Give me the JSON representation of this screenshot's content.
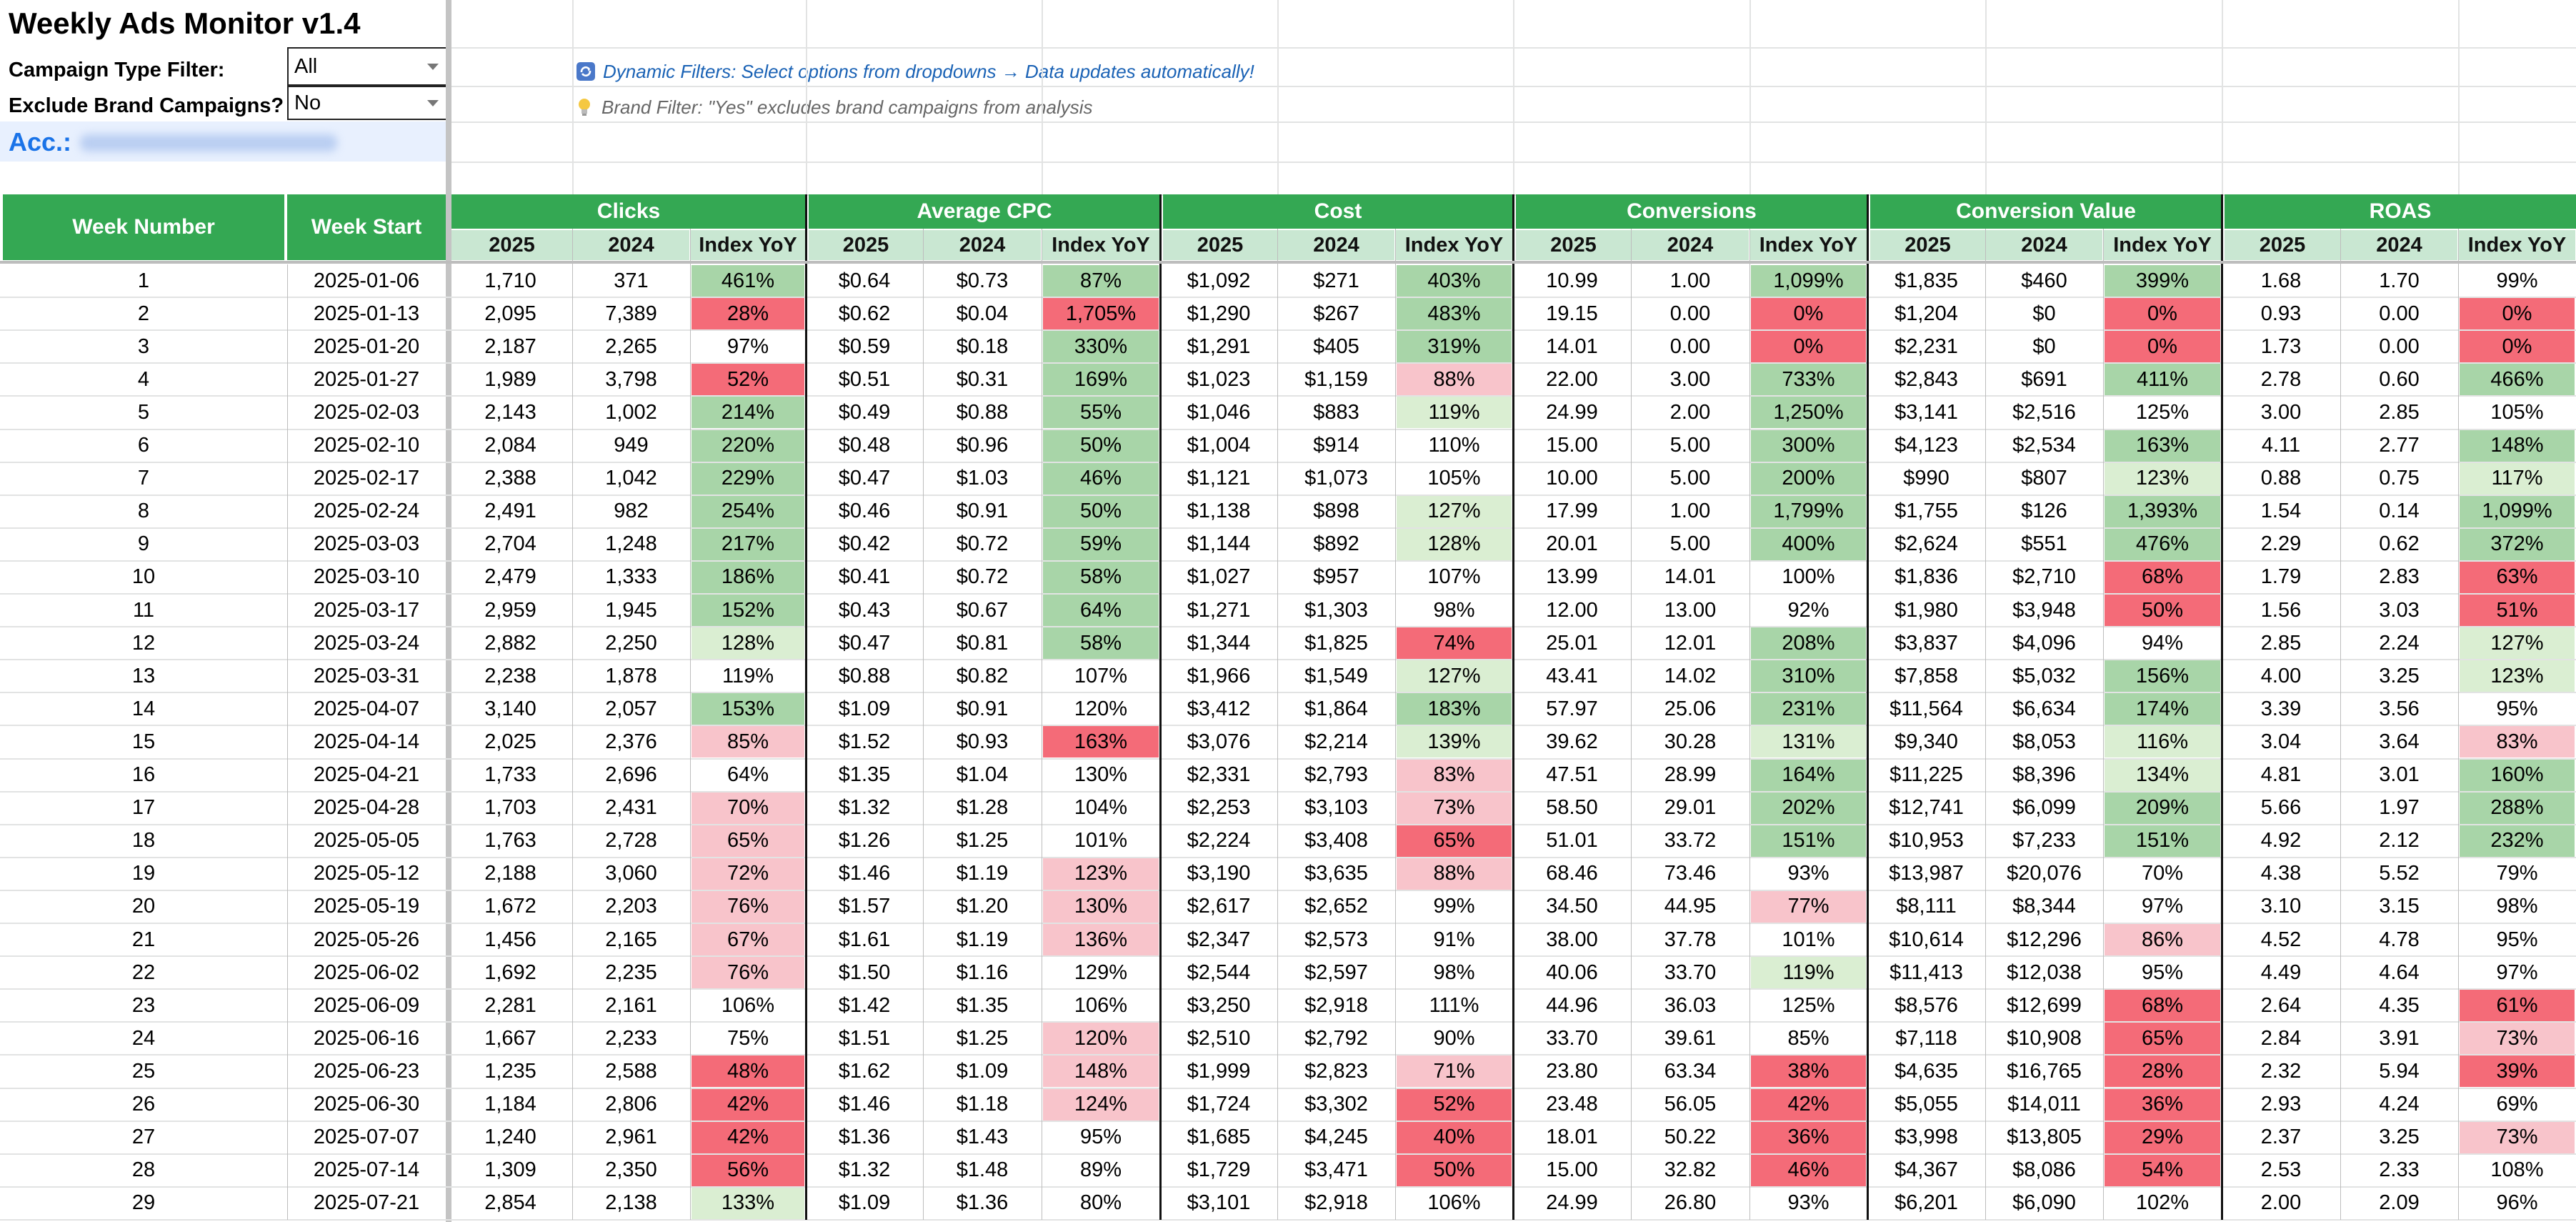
{
  "title": "Weekly Ads Monitor v1.4",
  "filters": {
    "campaign_type_label": "Campaign Type Filter:",
    "campaign_type_value": "All",
    "exclude_brand_label": "Exclude Brand Campaigns?",
    "exclude_brand_value": "No"
  },
  "notes": {
    "dynamic_filters": "Dynamic Filters: Select options from dropdowns → Data updates automatically!",
    "brand_filter": "Brand Filter: \"Yes\" excludes brand campaigns from analysis"
  },
  "account_label": "Acc.:",
  "headers": {
    "week_number": "Week Number",
    "week_start": "Week Start",
    "groups": [
      "Clicks",
      "Average CPC",
      "Cost",
      "Conversions",
      "Conversion Value",
      "ROAS"
    ],
    "sub": [
      "2025",
      "2024",
      "Index YoY"
    ]
  },
  "colors": {
    "header_green": "#34a853",
    "subheader_green": "#c9e7d2",
    "good_strong": "#a8d5a8",
    "good_light": "#daeed2",
    "bad_strong": "#f46b78",
    "bad_light": "#f8c4cb",
    "neutral": "#ffffff"
  },
  "rows": [
    {
      "week": "1",
      "start": "2025-01-06",
      "cells": [
        [
          "1,710",
          "371",
          "461%"
        ],
        [
          "$0.64",
          "$0.73",
          "87%"
        ],
        [
          "$1,092",
          "$271",
          "403%"
        ],
        [
          "10.99",
          "1.00",
          "1,099%"
        ],
        [
          "$1,835",
          "$460",
          "399%"
        ],
        [
          "1.68",
          "1.70",
          "99%"
        ]
      ]
    },
    {
      "week": "2",
      "start": "2025-01-13",
      "cells": [
        [
          "2,095",
          "7,389",
          "28%"
        ],
        [
          "$0.62",
          "$0.04",
          "1,705%"
        ],
        [
          "$1,290",
          "$267",
          "483%"
        ],
        [
          "19.15",
          "0.00",
          "0%"
        ],
        [
          "$1,204",
          "$0",
          "0%"
        ],
        [
          "0.93",
          "0.00",
          "0%"
        ]
      ]
    },
    {
      "week": "3",
      "start": "2025-01-20",
      "cells": [
        [
          "2,187",
          "2,265",
          "97%"
        ],
        [
          "$0.59",
          "$0.18",
          "330%"
        ],
        [
          "$1,291",
          "$405",
          "319%"
        ],
        [
          "14.01",
          "0.00",
          "0%"
        ],
        [
          "$2,231",
          "$0",
          "0%"
        ],
        [
          "1.73",
          "0.00",
          "0%"
        ]
      ]
    },
    {
      "week": "4",
      "start": "2025-01-27",
      "cells": [
        [
          "1,989",
          "3,798",
          "52%"
        ],
        [
          "$0.51",
          "$0.31",
          "169%"
        ],
        [
          "$1,023",
          "$1,159",
          "88%"
        ],
        [
          "22.00",
          "3.00",
          "733%"
        ],
        [
          "$2,843",
          "$691",
          "411%"
        ],
        [
          "2.78",
          "0.60",
          "466%"
        ]
      ]
    },
    {
      "week": "5",
      "start": "2025-02-03",
      "cells": [
        [
          "2,143",
          "1,002",
          "214%"
        ],
        [
          "$0.49",
          "$0.88",
          "55%"
        ],
        [
          "$1,046",
          "$883",
          "119%"
        ],
        [
          "24.99",
          "2.00",
          "1,250%"
        ],
        [
          "$3,141",
          "$2,516",
          "125%"
        ],
        [
          "3.00",
          "2.85",
          "105%"
        ]
      ]
    },
    {
      "week": "6",
      "start": "2025-02-10",
      "cells": [
        [
          "2,084",
          "949",
          "220%"
        ],
        [
          "$0.48",
          "$0.96",
          "50%"
        ],
        [
          "$1,004",
          "$914",
          "110%"
        ],
        [
          "15.00",
          "5.00",
          "300%"
        ],
        [
          "$4,123",
          "$2,534",
          "163%"
        ],
        [
          "4.11",
          "2.77",
          "148%"
        ]
      ]
    },
    {
      "week": "7",
      "start": "2025-02-17",
      "cells": [
        [
          "2,388",
          "1,042",
          "229%"
        ],
        [
          "$0.47",
          "$1.03",
          "46%"
        ],
        [
          "$1,121",
          "$1,073",
          "105%"
        ],
        [
          "10.00",
          "5.00",
          "200%"
        ],
        [
          "$990",
          "$807",
          "123%"
        ],
        [
          "0.88",
          "0.75",
          "117%"
        ]
      ]
    },
    {
      "week": "8",
      "start": "2025-02-24",
      "cells": [
        [
          "2,491",
          "982",
          "254%"
        ],
        [
          "$0.46",
          "$0.91",
          "50%"
        ],
        [
          "$1,138",
          "$898",
          "127%"
        ],
        [
          "17.99",
          "1.00",
          "1,799%"
        ],
        [
          "$1,755",
          "$126",
          "1,393%"
        ],
        [
          "1.54",
          "0.14",
          "1,099%"
        ]
      ]
    },
    {
      "week": "9",
      "start": "2025-03-03",
      "cells": [
        [
          "2,704",
          "1,248",
          "217%"
        ],
        [
          "$0.42",
          "$0.72",
          "59%"
        ],
        [
          "$1,144",
          "$892",
          "128%"
        ],
        [
          "20.01",
          "5.00",
          "400%"
        ],
        [
          "$2,624",
          "$551",
          "476%"
        ],
        [
          "2.29",
          "0.62",
          "372%"
        ]
      ]
    },
    {
      "week": "10",
      "start": "2025-03-10",
      "cells": [
        [
          "2,479",
          "1,333",
          "186%"
        ],
        [
          "$0.41",
          "$0.72",
          "58%"
        ],
        [
          "$1,027",
          "$957",
          "107%"
        ],
        [
          "13.99",
          "14.01",
          "100%"
        ],
        [
          "$1,836",
          "$2,710",
          "68%"
        ],
        [
          "1.79",
          "2.83",
          "63%"
        ]
      ]
    },
    {
      "week": "11",
      "start": "2025-03-17",
      "cells": [
        [
          "2,959",
          "1,945",
          "152%"
        ],
        [
          "$0.43",
          "$0.67",
          "64%"
        ],
        [
          "$1,271",
          "$1,303",
          "98%"
        ],
        [
          "12.00",
          "13.00",
          "92%"
        ],
        [
          "$1,980",
          "$3,948",
          "50%"
        ],
        [
          "1.56",
          "3.03",
          "51%"
        ]
      ]
    },
    {
      "week": "12",
      "start": "2025-03-24",
      "cells": [
        [
          "2,882",
          "2,250",
          "128%"
        ],
        [
          "$0.47",
          "$0.81",
          "58%"
        ],
        [
          "$1,344",
          "$1,825",
          "74%"
        ],
        [
          "25.01",
          "12.01",
          "208%"
        ],
        [
          "$3,837",
          "$4,096",
          "94%"
        ],
        [
          "2.85",
          "2.24",
          "127%"
        ]
      ]
    },
    {
      "week": "13",
      "start": "2025-03-31",
      "cells": [
        [
          "2,238",
          "1,878",
          "119%"
        ],
        [
          "$0.88",
          "$0.82",
          "107%"
        ],
        [
          "$1,966",
          "$1,549",
          "127%"
        ],
        [
          "43.41",
          "14.02",
          "310%"
        ],
        [
          "$7,858",
          "$5,032",
          "156%"
        ],
        [
          "4.00",
          "3.25",
          "123%"
        ]
      ]
    },
    {
      "week": "14",
      "start": "2025-04-07",
      "cells": [
        [
          "3,140",
          "2,057",
          "153%"
        ],
        [
          "$1.09",
          "$0.91",
          "120%"
        ],
        [
          "$3,412",
          "$1,864",
          "183%"
        ],
        [
          "57.97",
          "25.06",
          "231%"
        ],
        [
          "$11,564",
          "$6,634",
          "174%"
        ],
        [
          "3.39",
          "3.56",
          "95%"
        ]
      ]
    },
    {
      "week": "15",
      "start": "2025-04-14",
      "cells": [
        [
          "2,025",
          "2,376",
          "85%"
        ],
        [
          "$1.52",
          "$0.93",
          "163%"
        ],
        [
          "$3,076",
          "$2,214",
          "139%"
        ],
        [
          "39.62",
          "30.28",
          "131%"
        ],
        [
          "$9,340",
          "$8,053",
          "116%"
        ],
        [
          "3.04",
          "3.64",
          "83%"
        ]
      ]
    },
    {
      "week": "16",
      "start": "2025-04-21",
      "cells": [
        [
          "1,733",
          "2,696",
          "64%"
        ],
        [
          "$1.35",
          "$1.04",
          "130%"
        ],
        [
          "$2,331",
          "$2,793",
          "83%"
        ],
        [
          "47.51",
          "28.99",
          "164%"
        ],
        [
          "$11,225",
          "$8,396",
          "134%"
        ],
        [
          "4.81",
          "3.01",
          "160%"
        ]
      ]
    },
    {
      "week": "17",
      "start": "2025-04-28",
      "cells": [
        [
          "1,703",
          "2,431",
          "70%"
        ],
        [
          "$1.32",
          "$1.28",
          "104%"
        ],
        [
          "$2,253",
          "$3,103",
          "73%"
        ],
        [
          "58.50",
          "29.01",
          "202%"
        ],
        [
          "$12,741",
          "$6,099",
          "209%"
        ],
        [
          "5.66",
          "1.97",
          "288%"
        ]
      ]
    },
    {
      "week": "18",
      "start": "2025-05-05",
      "cells": [
        [
          "1,763",
          "2,728",
          "65%"
        ],
        [
          "$1.26",
          "$1.25",
          "101%"
        ],
        [
          "$2,224",
          "$3,408",
          "65%"
        ],
        [
          "51.01",
          "33.72",
          "151%"
        ],
        [
          "$10,953",
          "$7,233",
          "151%"
        ],
        [
          "4.92",
          "2.12",
          "232%"
        ]
      ]
    },
    {
      "week": "19",
      "start": "2025-05-12",
      "cells": [
        [
          "2,188",
          "3,060",
          "72%"
        ],
        [
          "$1.46",
          "$1.19",
          "123%"
        ],
        [
          "$3,190",
          "$3,635",
          "88%"
        ],
        [
          "68.46",
          "73.46",
          "93%"
        ],
        [
          "$13,987",
          "$20,076",
          "70%"
        ],
        [
          "4.38",
          "5.52",
          "79%"
        ]
      ]
    },
    {
      "week": "20",
      "start": "2025-05-19",
      "cells": [
        [
          "1,672",
          "2,203",
          "76%"
        ],
        [
          "$1.57",
          "$1.20",
          "130%"
        ],
        [
          "$2,617",
          "$2,652",
          "99%"
        ],
        [
          "34.50",
          "44.95",
          "77%"
        ],
        [
          "$8,111",
          "$8,344",
          "97%"
        ],
        [
          "3.10",
          "3.15",
          "98%"
        ]
      ]
    },
    {
      "week": "21",
      "start": "2025-05-26",
      "cells": [
        [
          "1,456",
          "2,165",
          "67%"
        ],
        [
          "$1.61",
          "$1.19",
          "136%"
        ],
        [
          "$2,347",
          "$2,573",
          "91%"
        ],
        [
          "38.00",
          "37.78",
          "101%"
        ],
        [
          "$10,614",
          "$12,296",
          "86%"
        ],
        [
          "4.52",
          "4.78",
          "95%"
        ]
      ]
    },
    {
      "week": "22",
      "start": "2025-06-02",
      "cells": [
        [
          "1,692",
          "2,235",
          "76%"
        ],
        [
          "$1.50",
          "$1.16",
          "129%"
        ],
        [
          "$2,544",
          "$2,597",
          "98%"
        ],
        [
          "40.06",
          "33.70",
          "119%"
        ],
        [
          "$11,413",
          "$12,038",
          "95%"
        ],
        [
          "4.49",
          "4.64",
          "97%"
        ]
      ]
    },
    {
      "week": "23",
      "start": "2025-06-09",
      "cells": [
        [
          "2,281",
          "2,161",
          "106%"
        ],
        [
          "$1.42",
          "$1.35",
          "106%"
        ],
        [
          "$3,250",
          "$2,918",
          "111%"
        ],
        [
          "44.96",
          "36.03",
          "125%"
        ],
        [
          "$8,576",
          "$12,699",
          "68%"
        ],
        [
          "2.64",
          "4.35",
          "61%"
        ]
      ]
    },
    {
      "week": "24",
      "start": "2025-06-16",
      "cells": [
        [
          "1,667",
          "2,233",
          "75%"
        ],
        [
          "$1.51",
          "$1.25",
          "120%"
        ],
        [
          "$2,510",
          "$2,792",
          "90%"
        ],
        [
          "33.70",
          "39.61",
          "85%"
        ],
        [
          "$7,118",
          "$10,908",
          "65%"
        ],
        [
          "2.84",
          "3.91",
          "73%"
        ]
      ]
    },
    {
      "week": "25",
      "start": "2025-06-23",
      "cells": [
        [
          "1,235",
          "2,588",
          "48%"
        ],
        [
          "$1.62",
          "$1.09",
          "148%"
        ],
        [
          "$1,999",
          "$2,823",
          "71%"
        ],
        [
          "23.80",
          "63.34",
          "38%"
        ],
        [
          "$4,635",
          "$16,765",
          "28%"
        ],
        [
          "2.32",
          "5.94",
          "39%"
        ]
      ]
    },
    {
      "week": "26",
      "start": "2025-06-30",
      "cells": [
        [
          "1,184",
          "2,806",
          "42%"
        ],
        [
          "$1.46",
          "$1.18",
          "124%"
        ],
        [
          "$1,724",
          "$3,302",
          "52%"
        ],
        [
          "23.48",
          "56.05",
          "42%"
        ],
        [
          "$5,055",
          "$14,011",
          "36%"
        ],
        [
          "2.93",
          "4.24",
          "69%"
        ]
      ]
    },
    {
      "week": "27",
      "start": "2025-07-07",
      "cells": [
        [
          "1,240",
          "2,961",
          "42%"
        ],
        [
          "$1.36",
          "$1.43",
          "95%"
        ],
        [
          "$1,685",
          "$4,245",
          "40%"
        ],
        [
          "18.01",
          "50.22",
          "36%"
        ],
        [
          "$3,998",
          "$13,805",
          "29%"
        ],
        [
          "2.37",
          "3.25",
          "73%"
        ]
      ]
    },
    {
      "week": "28",
      "start": "2025-07-14",
      "cells": [
        [
          "1,309",
          "2,350",
          "56%"
        ],
        [
          "$1.32",
          "$1.48",
          "89%"
        ],
        [
          "$1,729",
          "$3,471",
          "50%"
        ],
        [
          "15.00",
          "32.82",
          "46%"
        ],
        [
          "$4,367",
          "$8,086",
          "54%"
        ],
        [
          "2.53",
          "2.33",
          "108%"
        ]
      ]
    },
    {
      "week": "29",
      "start": "2025-07-21",
      "cells": [
        [
          "2,854",
          "2,138",
          "133%"
        ],
        [
          "$1.09",
          "$1.36",
          "80%"
        ],
        [
          "$3,101",
          "$2,918",
          "106%"
        ],
        [
          "24.99",
          "26.80",
          "93%"
        ],
        [
          "$6,201",
          "$6,090",
          "102%"
        ],
        [
          "2.00",
          "2.09",
          "96%"
        ]
      ]
    }
  ],
  "index_colors": [
    [
      "gs",
      "br",
      "gs",
      "gs",
      "gs",
      "w"
    ],
    [
      "bs",
      "bs",
      "gs",
      "bs",
      "bs",
      "bs"
    ],
    [
      "w",
      "br",
      "gs",
      "bs",
      "bs",
      "bs"
    ],
    [
      "bs",
      "br",
      "bl",
      "gs",
      "gs",
      "gs"
    ],
    [
      "gs",
      "gs",
      "gl",
      "gs",
      "w",
      "w"
    ],
    [
      "gs",
      "gs",
      "w",
      "gs",
      "gs",
      "gs"
    ],
    [
      "gs",
      "gs",
      "w",
      "gs",
      "gl",
      "gl"
    ],
    [
      "gs",
      "gs",
      "gl",
      "gs",
      "gs",
      "gs"
    ],
    [
      "gs",
      "gs",
      "gl",
      "gs",
      "gs",
      "gs"
    ],
    [
      "gs",
      "gs",
      "w",
      "w",
      "bs",
      "bs"
    ],
    [
      "gs",
      "gs",
      "w",
      "w",
      "bs",
      "bs"
    ],
    [
      "gl",
      "gs",
      "bs",
      "gs",
      "w",
      "gl"
    ],
    [
      "w",
      "w",
      "gl",
      "gs",
      "gs",
      "gl"
    ],
    [
      "gs",
      "w",
      "gs",
      "gs",
      "gs",
      "w"
    ],
    [
      "bl",
      "bs",
      "gl",
      "gl",
      "gl",
      "bl"
    ],
    [
      "w",
      "w",
      "bl",
      "gs",
      "gl",
      "gs"
    ],
    [
      "bl",
      "w",
      "bl",
      "gs",
      "gs",
      "gs"
    ],
    [
      "bl",
      "w",
      "bs",
      "gs",
      "gs",
      "gs"
    ],
    [
      "bl",
      "bl",
      "bl",
      "w",
      "w",
      "w"
    ],
    [
      "bl",
      "bl",
      "w",
      "bl",
      "w",
      "w"
    ],
    [
      "bl",
      "bl",
      "w",
      "w",
      "bl",
      "w"
    ],
    [
      "bl",
      "w",
      "w",
      "gl",
      "w",
      "w"
    ],
    [
      "w",
      "w",
      "w",
      "w",
      "bs",
      "bs"
    ],
    [
      "w",
      "bl",
      "w",
      "w",
      "bs",
      "bl"
    ],
    [
      "bs",
      "bl",
      "bl",
      "bs",
      "bs",
      "bs"
    ],
    [
      "bs",
      "bl",
      "bs",
      "bs",
      "bs",
      "w"
    ],
    [
      "bs",
      "w",
      "bs",
      "bs",
      "bs",
      "bl"
    ],
    [
      "bs",
      "w",
      "bs",
      "bs",
      "bs",
      "w"
    ],
    [
      "gl",
      "w",
      "w",
      "w",
      "w",
      "w"
    ]
  ]
}
